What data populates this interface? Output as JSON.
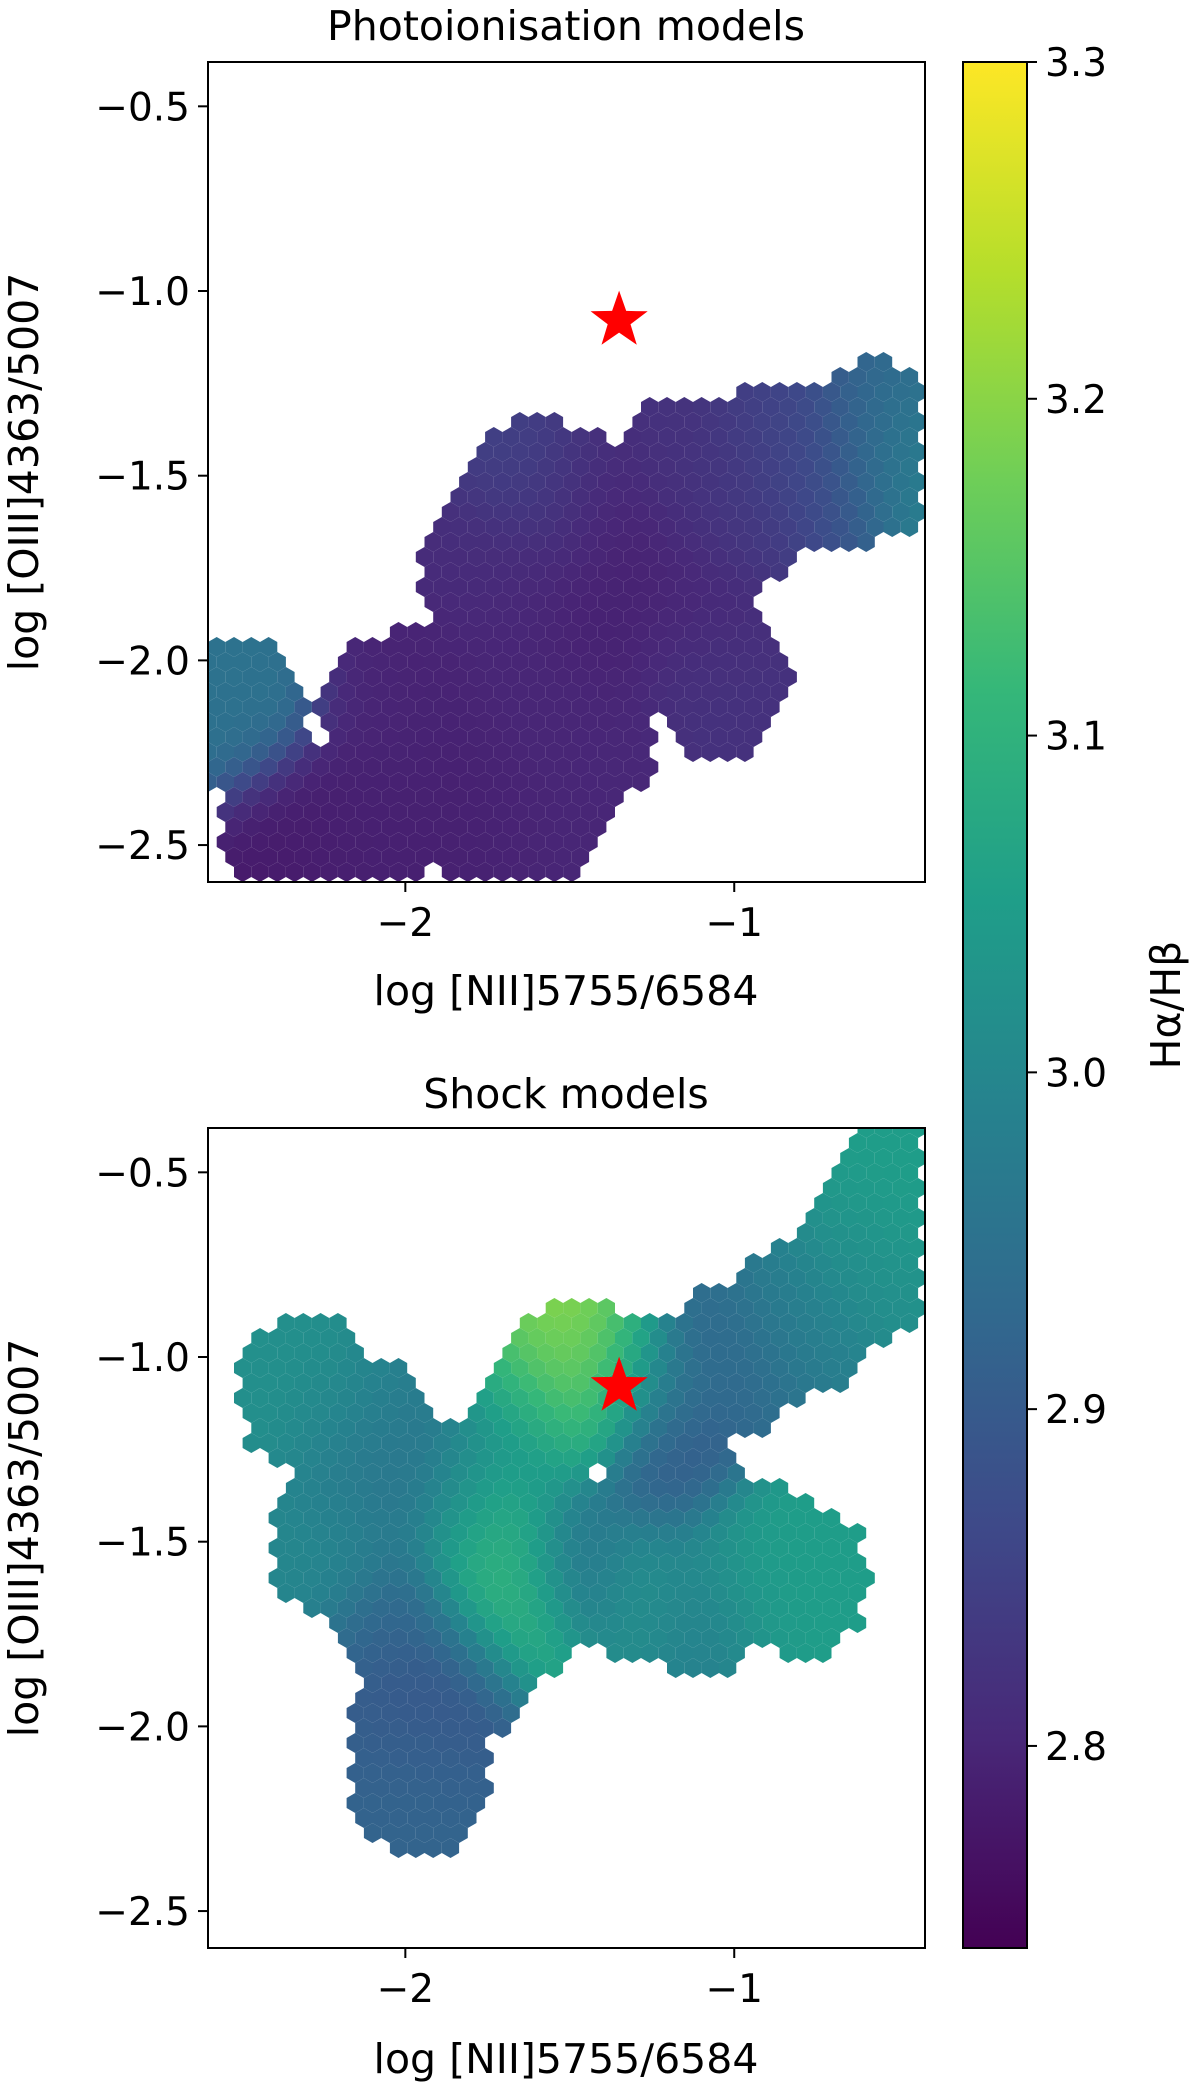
{
  "chart_data": [
    {
      "type": "hexbin",
      "title": "Photoionisation models",
      "xlabel": "log [NII]5755/6584",
      "ylabel": "log [OIII]4363/5007",
      "xlim": [
        -2.6,
        -0.42
      ],
      "ylim": [
        -2.6,
        -0.38
      ],
      "xticks": [
        -2,
        -1
      ],
      "xtick_labels": [
        "−2",
        "−1"
      ],
      "yticks": [
        -2.5,
        -2.0,
        -1.5,
        -1.0,
        -0.5
      ],
      "ytick_labels": [
        "−2.5",
        "−2.0",
        "−1.5",
        "−1.0",
        "−0.5"
      ],
      "grid": false,
      "colormap": "viridis",
      "color_values_in": "Ha/Hb",
      "hex_cells_approx": [
        {
          "x": -2.5,
          "y": -2.15,
          "v": 2.95
        },
        {
          "x": -2.35,
          "y": -2.45,
          "v": 2.78
        },
        {
          "x": -2.2,
          "y": -2.45,
          "v": 2.79
        },
        {
          "x": -2.05,
          "y": -2.4,
          "v": 2.79
        },
        {
          "x": -1.9,
          "y": -2.35,
          "v": 2.79
        },
        {
          "x": -1.75,
          "y": -2.4,
          "v": 2.79
        },
        {
          "x": -1.6,
          "y": -2.4,
          "v": 2.8
        },
        {
          "x": -2.05,
          "y": -2.15,
          "v": 2.8
        },
        {
          "x": -1.9,
          "y": -2.1,
          "v": 2.79
        },
        {
          "x": -1.75,
          "y": -2.0,
          "v": 2.8
        },
        {
          "x": -1.6,
          "y": -2.1,
          "v": 2.8
        },
        {
          "x": -1.45,
          "y": -2.2,
          "v": 2.8
        },
        {
          "x": -1.75,
          "y": -1.75,
          "v": 2.81
        },
        {
          "x": -1.6,
          "y": -1.8,
          "v": 2.8
        },
        {
          "x": -1.45,
          "y": -1.9,
          "v": 2.79
        },
        {
          "x": -1.6,
          "y": -1.55,
          "v": 2.85
        },
        {
          "x": -1.45,
          "y": -1.6,
          "v": 2.8
        },
        {
          "x": -1.3,
          "y": -1.7,
          "v": 2.79
        },
        {
          "x": -1.15,
          "y": -1.85,
          "v": 2.8
        },
        {
          "x": -1.05,
          "y": -2.05,
          "v": 2.82
        },
        {
          "x": -1.15,
          "y": -1.5,
          "v": 2.82
        },
        {
          "x": -1.0,
          "y": -1.6,
          "v": 2.83
        },
        {
          "x": -0.85,
          "y": -1.45,
          "v": 2.85
        },
        {
          "x": -0.7,
          "y": -1.5,
          "v": 2.87
        },
        {
          "x": -0.55,
          "y": -1.4,
          "v": 2.9
        },
        {
          "x": -0.5,
          "y": -1.45,
          "v": 3.02
        }
      ],
      "star_marker": {
        "x": -1.35,
        "y": -1.08,
        "color": "#ff0000"
      }
    },
    {
      "type": "hexbin",
      "title": "Shock models",
      "xlabel": "log [NII]5755/6584",
      "ylabel": "log [OIII]4363/5007",
      "xlim": [
        -2.6,
        -0.42
      ],
      "ylim": [
        -2.6,
        -0.38
      ],
      "xticks": [
        -2,
        -1
      ],
      "xtick_labels": [
        "−2",
        "−1"
      ],
      "yticks": [
        -2.5,
        -2.0,
        -1.5,
        -1.0,
        -0.5
      ],
      "ytick_labels": [
        "−2.5",
        "−2.0",
        "−1.5",
        "−1.0",
        "−0.5"
      ],
      "grid": false,
      "colormap": "viridis",
      "color_values_in": "Ha/Hb",
      "hex_cells_approx": [
        {
          "x": -2.3,
          "y": -1.1,
          "v": 3.02
        },
        {
          "x": -2.15,
          "y": -1.2,
          "v": 2.98
        },
        {
          "x": -2.2,
          "y": -1.5,
          "v": 3.0
        },
        {
          "x": -2.05,
          "y": -1.35,
          "v": 2.95
        },
        {
          "x": -2.0,
          "y": -1.7,
          "v": 2.92
        },
        {
          "x": -1.95,
          "y": -2.0,
          "v": 2.9
        },
        {
          "x": -1.95,
          "y": -2.15,
          "v": 2.92
        },
        {
          "x": -1.85,
          "y": -1.4,
          "v": 2.97
        },
        {
          "x": -1.75,
          "y": -1.45,
          "v": 3.1
        },
        {
          "x": -1.7,
          "y": -1.55,
          "v": 3.13
        },
        {
          "x": -1.7,
          "y": -1.7,
          "v": 3.12
        },
        {
          "x": -1.6,
          "y": -1.2,
          "v": 3.02
        },
        {
          "x": -1.5,
          "y": -1.08,
          "v": 3.15
        },
        {
          "x": -1.45,
          "y": -1.05,
          "v": 3.25
        },
        {
          "x": -1.3,
          "y": -1.1,
          "v": 2.95
        },
        {
          "x": -1.5,
          "y": -1.55,
          "v": 2.93
        },
        {
          "x": -1.3,
          "y": -1.6,
          "v": 3.03
        },
        {
          "x": -1.1,
          "y": -1.65,
          "v": 2.98
        },
        {
          "x": -0.95,
          "y": -1.55,
          "v": 3.05
        },
        {
          "x": -0.8,
          "y": -1.6,
          "v": 3.05
        },
        {
          "x": -1.2,
          "y": -1.3,
          "v": 2.9
        },
        {
          "x": -1.0,
          "y": -1.0,
          "v": 2.93
        },
        {
          "x": -0.8,
          "y": -0.9,
          "v": 2.98
        },
        {
          "x": -0.6,
          "y": -0.75,
          "v": 3.02
        },
        {
          "x": -0.5,
          "y": -0.55,
          "v": 3.05
        },
        {
          "x": -1.85,
          "y": -1.85,
          "v": 2.88
        }
      ],
      "star_marker": {
        "x": -1.35,
        "y": -1.08,
        "color": "#ff0000"
      }
    }
  ],
  "colorbar": {
    "label": "Hα/Hβ",
    "vmin": 2.74,
    "vmax": 3.3,
    "ticks": [
      2.8,
      2.9,
      3.0,
      3.1,
      3.2,
      3.3
    ],
    "tick_labels": [
      "2.8",
      "2.9",
      "3.0",
      "3.1",
      "3.2",
      "3.3"
    ],
    "colormap": "viridis"
  },
  "colors": {
    "marker": "#ff0000",
    "viridis_stops": [
      "#440154",
      "#482878",
      "#3e4989",
      "#31688e",
      "#26828e",
      "#1f9e89",
      "#35b779",
      "#6ece58",
      "#b5de2b",
      "#fde725"
    ]
  }
}
